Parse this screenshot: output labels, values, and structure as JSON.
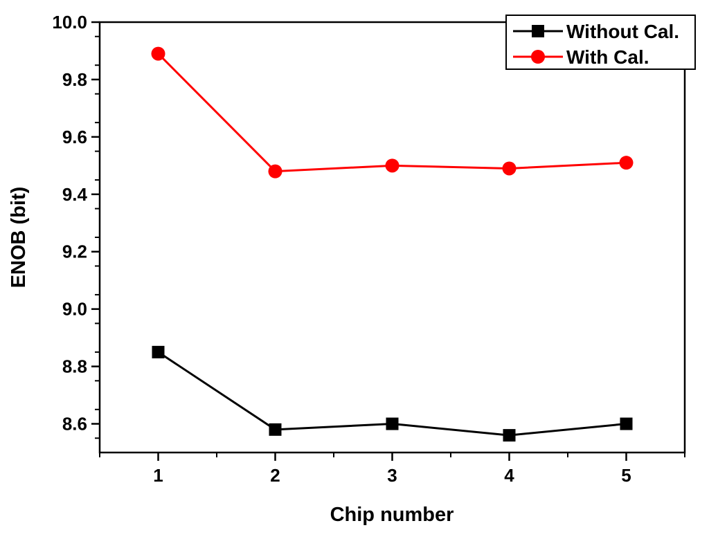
{
  "chart_data": {
    "type": "line",
    "title": "",
    "xlabel": "Chip number",
    "ylabel": "ENOB (bit)",
    "x": [
      1,
      2,
      3,
      4,
      5
    ],
    "xlim": [
      0.5,
      5.5
    ],
    "ylim": [
      8.5,
      10.0
    ],
    "xticks": [
      "1",
      "2",
      "3",
      "4",
      "5"
    ],
    "yticks": [
      "8.6",
      "8.8",
      "9.0",
      "9.2",
      "9.4",
      "9.6",
      "9.8",
      "10.0"
    ],
    "grid": false,
    "legend_position": "top-right",
    "series": [
      {
        "name": "Without Cal.",
        "values": [
          8.85,
          8.58,
          8.6,
          8.56,
          8.6
        ],
        "color": "#000000",
        "marker": "square"
      },
      {
        "name": "With Cal.",
        "values": [
          9.89,
          9.48,
          9.5,
          9.49,
          9.51
        ],
        "color": "#ff0000",
        "marker": "circle"
      }
    ]
  }
}
